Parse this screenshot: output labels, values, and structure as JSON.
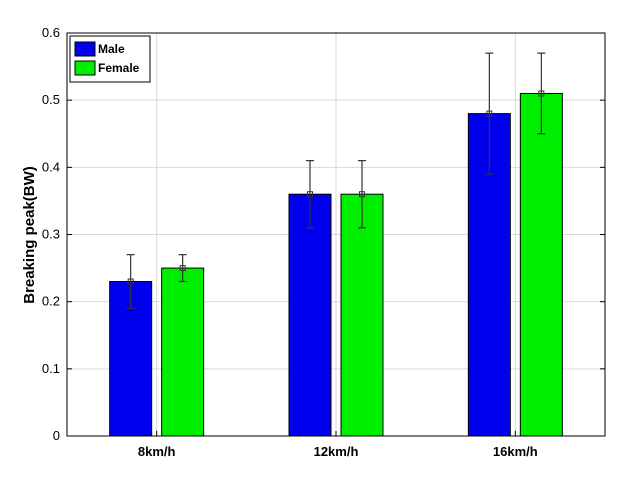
{
  "chart_data": {
    "type": "bar",
    "categories": [
      "8km/h",
      "12km/h",
      "16km/h"
    ],
    "series": [
      {
        "name": "Male",
        "color": "#0000ee",
        "values": [
          0.23,
          0.36,
          0.48
        ],
        "error_low": [
          0.19,
          0.31,
          0.39
        ],
        "error_high": [
          0.27,
          0.41,
          0.57
        ]
      },
      {
        "name": "Female",
        "color": "#00ee00",
        "values": [
          0.25,
          0.36,
          0.51
        ],
        "error_low": [
          0.23,
          0.31,
          0.45
        ],
        "error_high": [
          0.27,
          0.41,
          0.57
        ]
      }
    ],
    "title": "",
    "xlabel": "",
    "ylabel": "Breaking peak(BW)",
    "ylim": [
      0,
      0.6
    ],
    "yticks": [
      "0",
      "0.1",
      "0.2",
      "0.3",
      "0.4",
      "0.5",
      "0.6"
    ],
    "grid": true,
    "legend_position": "top-left"
  }
}
